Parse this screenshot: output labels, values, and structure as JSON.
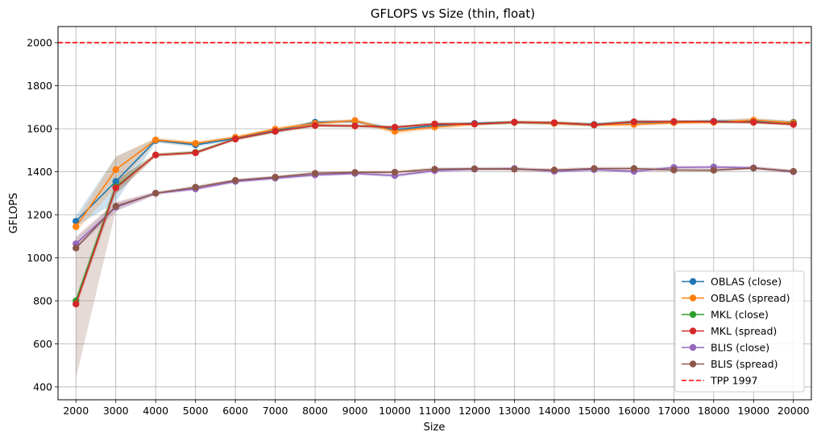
{
  "chart_data": {
    "type": "line",
    "title": "GFLOPS vs Size (thin, float)",
    "xlabel": "Size",
    "ylabel": "GFLOPS",
    "x": [
      2000,
      3000,
      4000,
      5000,
      6000,
      7000,
      8000,
      9000,
      10000,
      11000,
      12000,
      13000,
      14000,
      15000,
      16000,
      17000,
      18000,
      19000,
      20000
    ],
    "xlim": [
      1550,
      20450
    ],
    "ylim": [
      340,
      2075
    ],
    "yticks": [
      400,
      600,
      800,
      1000,
      1200,
      1400,
      1600,
      1800,
      2000
    ],
    "grid": true,
    "legend_position": "bottom-right",
    "series": [
      {
        "name": "OBLAS (close)",
        "color": "#1f77b4",
        "values": [
          1170,
          1355,
          1545,
          1525,
          1555,
          1590,
          1630,
          1635,
          1595,
          1615,
          1625,
          1630,
          1625,
          1620,
          1630,
          1630,
          1635,
          1635,
          1630
        ],
        "band_low": [
          1145,
          1260,
          1535,
          1515,
          1548,
          1583,
          1622,
          1628,
          1585,
          1605,
          1618,
          1623,
          1618,
          1612,
          1618,
          1622,
          1627,
          1625,
          1622
        ],
        "band_high": [
          1195,
          1470,
          1555,
          1535,
          1562,
          1597,
          1638,
          1642,
          1605,
          1625,
          1632,
          1637,
          1632,
          1628,
          1642,
          1638,
          1643,
          1648,
          1638
        ]
      },
      {
        "name": "OBLAS (spread)",
        "color": "#ff7f0e",
        "values": [
          1145,
          1410,
          1548,
          1532,
          1560,
          1598,
          1625,
          1638,
          1588,
          1608,
          1622,
          1630,
          1625,
          1618,
          1620,
          1628,
          1630,
          1640,
          1628
        ],
        "band_low": [
          1120,
          1330,
          1538,
          1522,
          1552,
          1590,
          1615,
          1630,
          1575,
          1598,
          1614,
          1622,
          1617,
          1610,
          1610,
          1620,
          1622,
          1630,
          1620
        ],
        "band_high": [
          1170,
          1470,
          1558,
          1542,
          1568,
          1606,
          1635,
          1646,
          1600,
          1618,
          1630,
          1638,
          1633,
          1626,
          1630,
          1636,
          1638,
          1650,
          1636
        ]
      },
      {
        "name": "MKL (close)",
        "color": "#2ca02c",
        "values": [
          800,
          1330,
          1478,
          1490,
          1552,
          1588,
          1615,
          1613,
          1607,
          1622,
          1622,
          1630,
          1628,
          1618,
          1632,
          1633,
          1633,
          1630,
          1622
        ],
        "band_low": [
          780,
          1300,
          1470,
          1482,
          1545,
          1580,
          1608,
          1606,
          1600,
          1615,
          1615,
          1623,
          1621,
          1611,
          1625,
          1626,
          1626,
          1623,
          1615
        ],
        "band_high": [
          820,
          1360,
          1486,
          1498,
          1559,
          1596,
          1622,
          1620,
          1614,
          1629,
          1629,
          1637,
          1635,
          1625,
          1639,
          1640,
          1640,
          1637,
          1629
        ]
      },
      {
        "name": "MKL (spread)",
        "color": "#d62728",
        "values": [
          785,
          1325,
          1478,
          1488,
          1552,
          1588,
          1615,
          1613,
          1607,
          1622,
          1622,
          1630,
          1628,
          1618,
          1632,
          1633,
          1633,
          1630,
          1620
        ],
        "band_low": [
          765,
          1295,
          1470,
          1480,
          1545,
          1580,
          1608,
          1606,
          1600,
          1615,
          1615,
          1623,
          1621,
          1611,
          1625,
          1626,
          1626,
          1623,
          1613
        ],
        "band_high": [
          805,
          1355,
          1486,
          1496,
          1559,
          1596,
          1622,
          1620,
          1614,
          1629,
          1629,
          1637,
          1635,
          1625,
          1639,
          1640,
          1640,
          1637,
          1627
        ]
      },
      {
        "name": "BLIS (close)",
        "color": "#9467bd",
        "values": [
          1065,
          1235,
          1300,
          1320,
          1355,
          1370,
          1385,
          1392,
          1382,
          1405,
          1412,
          1415,
          1402,
          1410,
          1402,
          1420,
          1422,
          1418,
          1400
        ],
        "band_low": [
          1040,
          1215,
          1292,
          1312,
          1347,
          1362,
          1377,
          1384,
          1374,
          1397,
          1404,
          1407,
          1394,
          1402,
          1394,
          1412,
          1414,
          1410,
          1392
        ],
        "band_high": [
          1090,
          1255,
          1308,
          1328,
          1363,
          1378,
          1393,
          1400,
          1390,
          1413,
          1420,
          1423,
          1410,
          1418,
          1410,
          1428,
          1430,
          1426,
          1408
        ]
      },
      {
        "name": "BLIS (spread)",
        "color": "#8c564b",
        "values": [
          1045,
          1240,
          1300,
          1328,
          1360,
          1375,
          1393,
          1397,
          1398,
          1412,
          1414,
          1412,
          1408,
          1415,
          1415,
          1408,
          1407,
          1417,
          1402
        ],
        "band_low": [
          440,
          1220,
          1292,
          1320,
          1352,
          1367,
          1385,
          1389,
          1390,
          1404,
          1406,
          1404,
          1400,
          1407,
          1407,
          1400,
          1399,
          1409,
          1394
        ],
        "band_high": [
          1100,
          1260,
          1308,
          1336,
          1368,
          1383,
          1401,
          1405,
          1406,
          1420,
          1422,
          1420,
          1416,
          1423,
          1423,
          1416,
          1415,
          1425,
          1410
        ]
      }
    ],
    "reference_lines": [
      {
        "name": "TPP 1997",
        "color": "#ff0000",
        "y": 2000,
        "style": "dashed"
      }
    ]
  }
}
